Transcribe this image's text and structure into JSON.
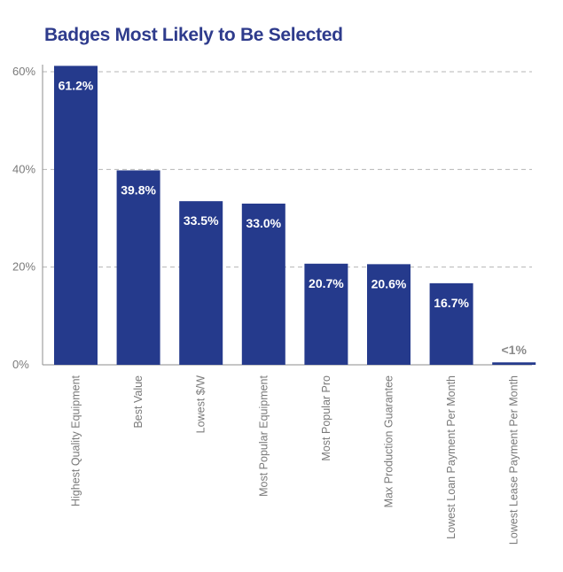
{
  "colors": {
    "title": "#2e3b8c",
    "bar": "#253a8c",
    "bar_label": "#ffffff",
    "muted_label": "#8a8a8a",
    "grid": "#b5b5b5",
    "axis": "#8e8e8e",
    "tick": "#7a7a7a"
  },
  "chart_data": {
    "type": "bar",
    "title": "Badges Most Likely to Be Selected",
    "xlabel": "",
    "ylabel": "",
    "ylim": [
      0,
      60
    ],
    "yticks": [
      0,
      20,
      40,
      60
    ],
    "ytick_labels": [
      "0%",
      "20%",
      "40%",
      "60%"
    ],
    "grid": true,
    "legend": "none",
    "categories": [
      "Highest Quality Equipment",
      "Best Value",
      "Lowest $/W",
      "Most Popular Equipment",
      "Most Popular Pro",
      "Max Production Guarantee",
      "Lowest Loan Payment Per Month",
      "Lowest Lease Payment Per Month"
    ],
    "values": [
      61.2,
      39.8,
      33.5,
      33.0,
      20.7,
      20.6,
      16.7,
      0.5
    ],
    "data_labels": [
      "61.2%",
      "39.8%",
      "33.5%",
      "33.0%",
      "20.7%",
      "20.6%",
      "16.7%",
      "<1%"
    ]
  }
}
